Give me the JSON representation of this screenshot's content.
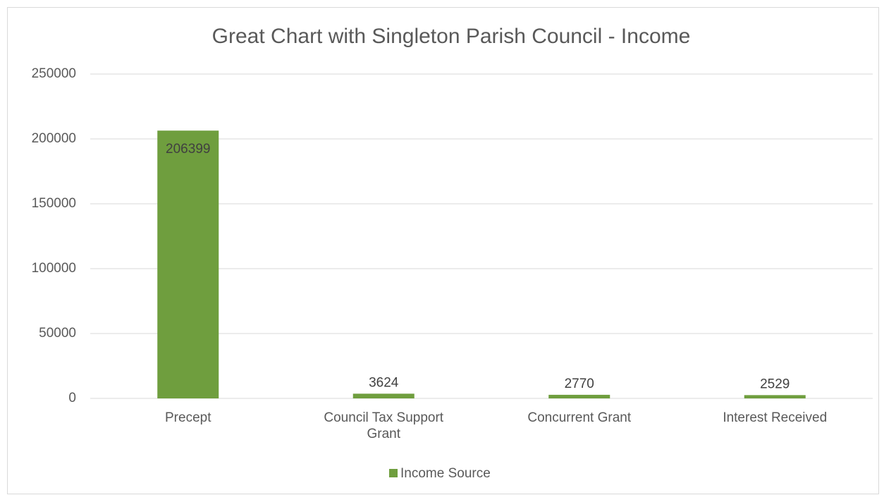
{
  "chart_data": {
    "type": "bar",
    "title": "Great Chart with Singleton Parish Council - Income",
    "categories": [
      "Precept",
      "Council Tax Support Grant",
      "Concurrent Grant",
      "Interest Received"
    ],
    "series": [
      {
        "name": "Income Source",
        "color": "#6f9e3e",
        "values": [
          206399,
          3624,
          2770,
          2529
        ]
      }
    ],
    "ylim": [
      0,
      250000
    ],
    "yticks": [
      0,
      50000,
      100000,
      150000,
      200000,
      250000
    ],
    "grid": true,
    "legend": "bottom"
  }
}
